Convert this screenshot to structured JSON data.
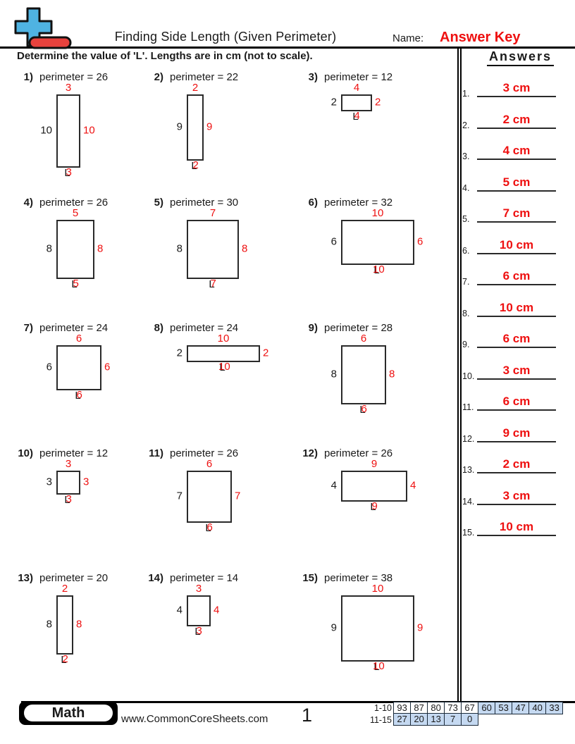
{
  "header": {
    "title": "Finding Side Length (Given Perimeter)",
    "name_label": "Name:",
    "answer_key": "Answer Key",
    "instruction": "Determine the value of 'L'. Lengths are in cm (not to scale)."
  },
  "answers_panel": {
    "heading": "Answers",
    "items": [
      {
        "num": "1.",
        "value": "3 cm"
      },
      {
        "num": "2.",
        "value": "2 cm"
      },
      {
        "num": "3.",
        "value": "4 cm"
      },
      {
        "num": "4.",
        "value": "5 cm"
      },
      {
        "num": "5.",
        "value": "7 cm"
      },
      {
        "num": "6.",
        "value": "10 cm"
      },
      {
        "num": "7.",
        "value": "6 cm"
      },
      {
        "num": "8.",
        "value": "10 cm"
      },
      {
        "num": "9.",
        "value": "6 cm"
      },
      {
        "num": "10.",
        "value": "3 cm"
      },
      {
        "num": "11.",
        "value": "6 cm"
      },
      {
        "num": "12.",
        "value": "9 cm"
      },
      {
        "num": "13.",
        "value": "2 cm"
      },
      {
        "num": "14.",
        "value": "3 cm"
      },
      {
        "num": "15.",
        "value": "10 cm"
      }
    ]
  },
  "problems": [
    {
      "num": "1)",
      "perimeter_label": "perimeter = 26",
      "left_side": "10",
      "top_side": "3",
      "right_side": "10",
      "unknown": "L",
      "answer": "3"
    },
    {
      "num": "2)",
      "perimeter_label": "perimeter = 22",
      "left_side": "9",
      "top_side": "2",
      "right_side": "9",
      "unknown": "L",
      "answer": "2"
    },
    {
      "num": "3)",
      "perimeter_label": "perimeter = 12",
      "left_side": "2",
      "top_side": "4",
      "right_side": "2",
      "unknown": "L",
      "answer": "4"
    },
    {
      "num": "4)",
      "perimeter_label": "perimeter = 26",
      "left_side": "8",
      "top_side": "5",
      "right_side": "8",
      "unknown": "L",
      "answer": "5"
    },
    {
      "num": "5)",
      "perimeter_label": "perimeter = 30",
      "left_side": "8",
      "top_side": "7",
      "right_side": "8",
      "unknown": "L",
      "answer": "7"
    },
    {
      "num": "6)",
      "perimeter_label": "perimeter = 32",
      "left_side": "6",
      "top_side": "10",
      "right_side": "6",
      "unknown": "L",
      "answer": "10"
    },
    {
      "num": "7)",
      "perimeter_label": "perimeter = 24",
      "left_side": "6",
      "top_side": "6",
      "right_side": "6",
      "unknown": "L",
      "answer": "6"
    },
    {
      "num": "8)",
      "perimeter_label": "perimeter = 24",
      "left_side": "2",
      "top_side": "10",
      "right_side": "2",
      "unknown": "L",
      "answer": "10"
    },
    {
      "num": "9)",
      "perimeter_label": "perimeter = 28",
      "left_side": "8",
      "top_side": "6",
      "right_side": "8",
      "unknown": "L",
      "answer": "6"
    },
    {
      "num": "10)",
      "perimeter_label": "perimeter = 12",
      "left_side": "3",
      "top_side": "3",
      "right_side": "3",
      "unknown": "L",
      "answer": "3"
    },
    {
      "num": "11)",
      "perimeter_label": "perimeter = 26",
      "left_side": "7",
      "top_side": "6",
      "right_side": "7",
      "unknown": "L",
      "answer": "6"
    },
    {
      "num": "12)",
      "perimeter_label": "perimeter = 26",
      "left_side": "4",
      "top_side": "9",
      "right_side": "4",
      "unknown": "L",
      "answer": "9"
    },
    {
      "num": "13)",
      "perimeter_label": "perimeter = 20",
      "left_side": "8",
      "top_side": "2",
      "right_side": "8",
      "unknown": "L",
      "answer": "2"
    },
    {
      "num": "14)",
      "perimeter_label": "perimeter = 14",
      "left_side": "4",
      "top_side": "3",
      "right_side": "4",
      "unknown": "L",
      "answer": "3"
    },
    {
      "num": "15)",
      "perimeter_label": "perimeter = 38",
      "left_side": "9",
      "top_side": "10",
      "right_side": "9",
      "unknown": "L",
      "answer": "10"
    }
  ],
  "footer": {
    "badge_label": "Math",
    "url": "www.CommonCoreSheets.com",
    "page": "1",
    "grade_table": {
      "row1_label": "1-10",
      "row1_values": [
        "93",
        "87",
        "80",
        "73",
        "67",
        "60",
        "53",
        "47",
        "40",
        "33"
      ],
      "row1_white_count": 5,
      "row2_label": "11-15",
      "row2_values": [
        "27",
        "20",
        "13",
        "7",
        "0"
      ]
    }
  },
  "colors": {
    "accent_red": "#ee1010",
    "logo_blue": "#4fb3e2",
    "logo_red": "#e8423d",
    "table_blue": "#c5d9f1",
    "line_black": "#000000"
  }
}
